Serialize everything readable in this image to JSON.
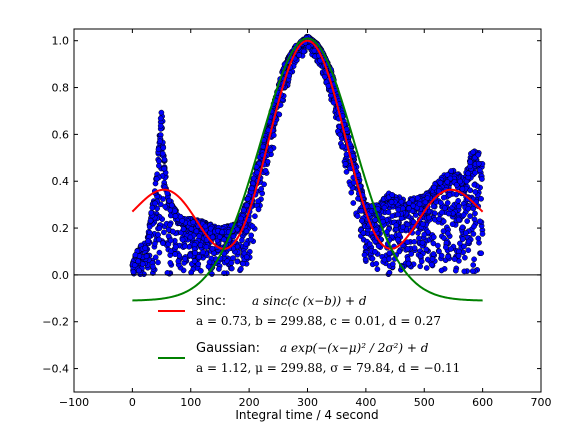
{
  "chart_data": {
    "type": "scatter",
    "title": "",
    "xlabel": "Integral time / 4 second",
    "ylabel": "",
    "xlim": [
      -100,
      700
    ],
    "ylim": [
      -0.5,
      1.05
    ],
    "xticks": [
      "−100",
      "0",
      "100",
      "200",
      "300",
      "400",
      "500",
      "600",
      "700"
    ],
    "yticks": [
      "−0.4",
      "−0.2",
      "0.0",
      "0.2",
      "0.4",
      "0.6",
      "0.8",
      "1.0"
    ],
    "grid": false,
    "zero_line": true,
    "legend_position": "lower center",
    "colors": {
      "scatter": "#0000ff",
      "sinc": "#ff0000",
      "gaussian": "#008000"
    },
    "series": [
      {
        "kind": "scatter",
        "approx_envelope": {
          "x": [
            0,
            10,
            25,
            40,
            45,
            50,
            55,
            60,
            70,
            80,
            100,
            120,
            150,
            180,
            200,
            230,
            260,
            280,
            300,
            320,
            340,
            370,
            400,
            420,
            440,
            470,
            500,
            530,
            550,
            570,
            580,
            590,
            600
          ],
          "upper": [
            0.05,
            0.12,
            0.14,
            0.4,
            0.55,
            0.76,
            0.5,
            0.35,
            0.3,
            0.25,
            0.24,
            0.23,
            0.2,
            0.22,
            0.35,
            0.62,
            0.9,
            0.98,
            1.02,
            0.98,
            0.88,
            0.6,
            0.3,
            0.3,
            0.35,
            0.32,
            0.34,
            0.42,
            0.45,
            0.42,
            0.52,
            0.55,
            0.48
          ],
          "lower": [
            0,
            0,
            0,
            0,
            0,
            0,
            0,
            0,
            0,
            0,
            0,
            0,
            0,
            0,
            0.05,
            0.4,
            0.75,
            0.9,
            0.96,
            0.9,
            0.75,
            0.4,
            0.05,
            0,
            0,
            0,
            0,
            0,
            0,
            0,
            0,
            0,
            0
          ]
        }
      },
      {
        "name": "sinc:",
        "kind": "line",
        "formula": "a sinc(c (x−b)) + d",
        "params": "a = 0.73,  b = 299.88,  c = 0.01,  d = 0.27",
        "a": 0.73,
        "b": 299.88,
        "c": 0.01,
        "d": 0.27,
        "x_range": [
          0,
          600
        ]
      },
      {
        "name": "Gaussian:",
        "kind": "line",
        "formula": "a exp(−(x−μ)² / 2σ²) + d",
        "params": "a = 1.12,  μ = 299.88,  σ = 79.84,  d = −0.11",
        "a": 1.12,
        "mu": 299.88,
        "sigma": 79.84,
        "d": -0.11,
        "x_range": [
          0,
          600
        ]
      }
    ]
  }
}
